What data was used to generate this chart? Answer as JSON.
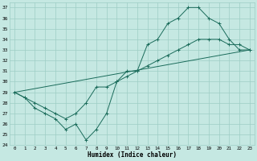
{
  "xlabel": "Humidex (Indice chaleur)",
  "bg_color": "#c5e8e2",
  "grid_color": "#9ecdc5",
  "line_color": "#1a6b5a",
  "xlim": [
    -0.5,
    23.5
  ],
  "ylim": [
    24,
    37.5
  ],
  "xticks": [
    0,
    1,
    2,
    3,
    4,
    5,
    6,
    7,
    8,
    9,
    10,
    11,
    12,
    13,
    14,
    15,
    16,
    17,
    18,
    19,
    20,
    21,
    22,
    23
  ],
  "yticks": [
    24,
    25,
    26,
    27,
    28,
    29,
    30,
    31,
    32,
    33,
    34,
    35,
    36,
    37
  ],
  "line1_x": [
    0,
    1,
    2,
    3,
    4,
    5,
    6,
    7,
    8,
    9,
    10,
    11,
    12,
    13,
    14,
    15,
    16,
    17,
    18,
    19,
    20,
    21,
    22,
    23
  ],
  "line1_y": [
    29,
    28.5,
    27.5,
    27,
    26.5,
    25.5,
    26,
    24.5,
    25.5,
    27,
    30,
    31,
    31,
    33.5,
    34,
    35.5,
    36,
    37,
    37,
    36,
    35.5,
    34,
    33,
    33
  ],
  "line2_x": [
    0,
    1,
    2,
    3,
    4,
    5,
    6,
    7,
    8,
    9,
    10,
    11,
    12,
    13,
    14,
    15,
    16,
    17,
    18,
    19,
    20,
    21,
    22,
    23
  ],
  "line2_y": [
    29,
    28.5,
    28,
    27.5,
    27,
    26.5,
    27,
    28,
    29.5,
    29.5,
    30,
    30.5,
    31,
    31.5,
    32,
    32.5,
    33,
    33.5,
    34,
    34,
    34,
    33.5,
    33.5,
    33
  ],
  "line3_x": [
    0,
    23
  ],
  "line3_y": [
    29,
    33
  ]
}
